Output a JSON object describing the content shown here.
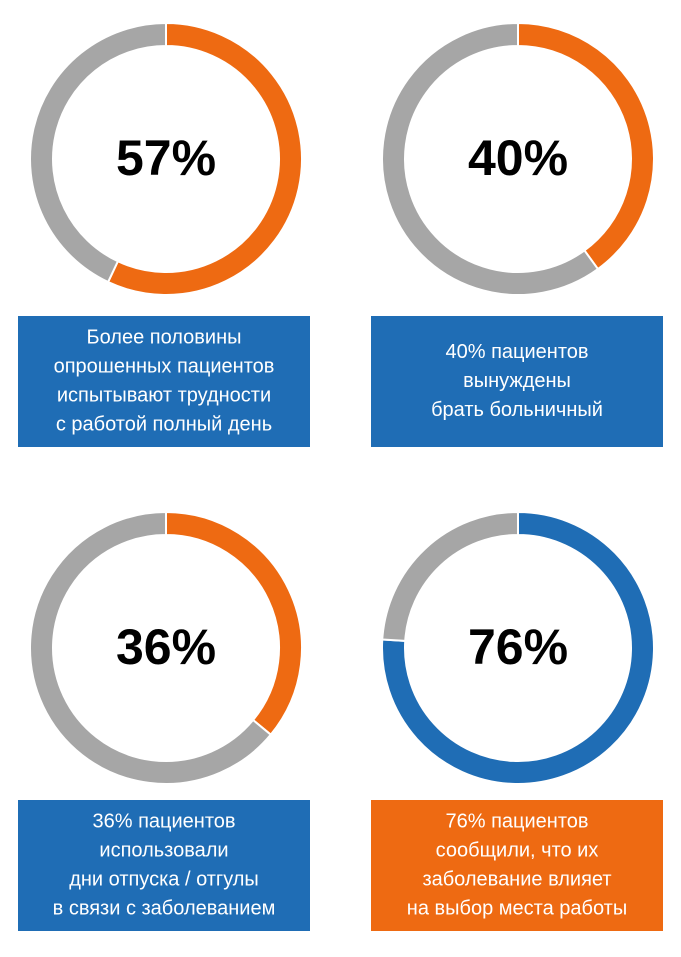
{
  "chart_data": [
    {
      "type": "donut",
      "values": [
        57,
        43
      ],
      "colors": [
        "#ee6a12",
        "#a6a6a6"
      ],
      "value_labels": [
        "57%",
        null
      ],
      "caption": [
        "Более половины",
        "опрошенных пациентов",
        "испытывают трудности",
        "с работой полный день"
      ],
      "caption_color": "#1f6db5"
    },
    {
      "type": "donut",
      "values": [
        40,
        60
      ],
      "colors": [
        "#ee6a12",
        "#a6a6a6"
      ],
      "value_labels": [
        "40%",
        null
      ],
      "caption": [
        "40% пациентов",
        "вынуждены",
        "брать больничный"
      ],
      "caption_color": "#1f6db5"
    },
    {
      "type": "donut",
      "values": [
        36,
        64
      ],
      "colors": [
        "#ee6a12",
        "#a6a6a6"
      ],
      "value_labels": [
        "36%",
        null
      ],
      "caption": [
        "36% пациентов",
        "использовали",
        "дни отпуска / отгулы",
        "в связи с заболеванием"
      ],
      "caption_color": "#1f6db5"
    },
    {
      "type": "donut",
      "values": [
        76,
        24
      ],
      "colors": [
        "#1f6db5",
        "#a6a6a6"
      ],
      "value_labels": [
        "76%",
        null
      ],
      "caption": [
        "76% пациентов",
        "сообщили, что их",
        "заболевание влияет",
        "на выбор места работы"
      ],
      "caption_color": "#ee6a12"
    }
  ]
}
